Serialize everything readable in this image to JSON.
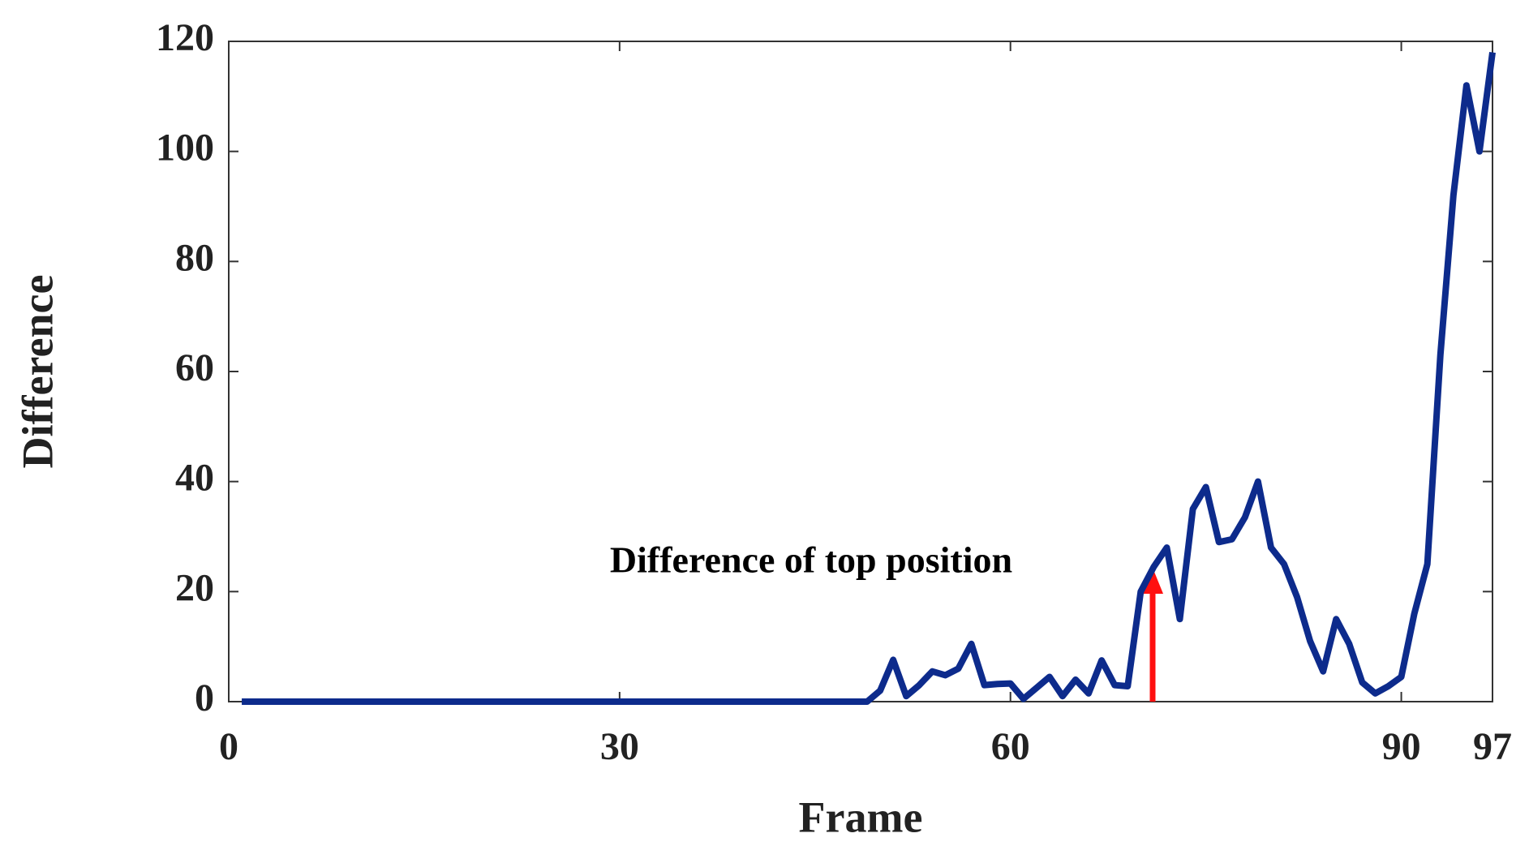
{
  "chart_data": {
    "type": "line",
    "xlabel": "Frame",
    "ylabel": "Difference",
    "annotation": "Difference of top position",
    "x": [
      1,
      2,
      3,
      4,
      5,
      6,
      7,
      8,
      9,
      10,
      11,
      12,
      13,
      14,
      15,
      16,
      17,
      18,
      19,
      20,
      21,
      22,
      23,
      24,
      25,
      26,
      27,
      28,
      29,
      30,
      31,
      32,
      33,
      34,
      35,
      36,
      37,
      38,
      39,
      40,
      41,
      42,
      43,
      44,
      45,
      46,
      47,
      48,
      49,
      50,
      51,
      52,
      53,
      54,
      55,
      56,
      57,
      58,
      59,
      60,
      61,
      62,
      63,
      64,
      65,
      66,
      67,
      68,
      69,
      70,
      71,
      72,
      73,
      74,
      75,
      76,
      77,
      78,
      79,
      80,
      81,
      82,
      83,
      84,
      85,
      86,
      87,
      88,
      89,
      90,
      91,
      92,
      93,
      94,
      95,
      96,
      97
    ],
    "values": [
      0,
      0,
      0,
      0,
      0,
      0,
      0,
      0,
      0,
      0,
      0,
      0,
      0,
      0,
      0,
      0,
      0,
      0,
      0,
      0,
      0,
      0,
      0,
      0,
      0,
      0,
      0,
      0,
      0,
      0,
      0,
      0,
      0,
      0,
      0,
      0,
      0,
      0,
      0,
      0,
      0,
      0,
      0,
      0,
      0,
      0,
      0,
      0,
      0,
      2,
      7.6,
      1,
      3,
      5.5,
      4.8,
      6,
      10.5,
      3,
      3.2,
      3.3,
      0.5,
      2.5,
      4.5,
      1,
      4,
      1.5,
      7.5,
      3,
      2.8,
      20,
      24.5,
      28,
      15,
      35,
      39,
      29,
      29.5,
      33.5,
      40,
      28,
      25,
      19,
      11,
      5.5,
      15,
      10.5,
      3.5,
      1.5,
      2.8,
      4.5,
      16,
      25,
      63,
      92,
      112,
      100,
      118
    ],
    "color": "#0d2b8c",
    "xlim": [
      0,
      97
    ],
    "ylim": [
      0,
      120
    ],
    "xticks": [
      0,
      30,
      60,
      90,
      97
    ],
    "yticks": [
      0,
      20,
      40,
      60,
      80,
      100,
      120
    ]
  }
}
